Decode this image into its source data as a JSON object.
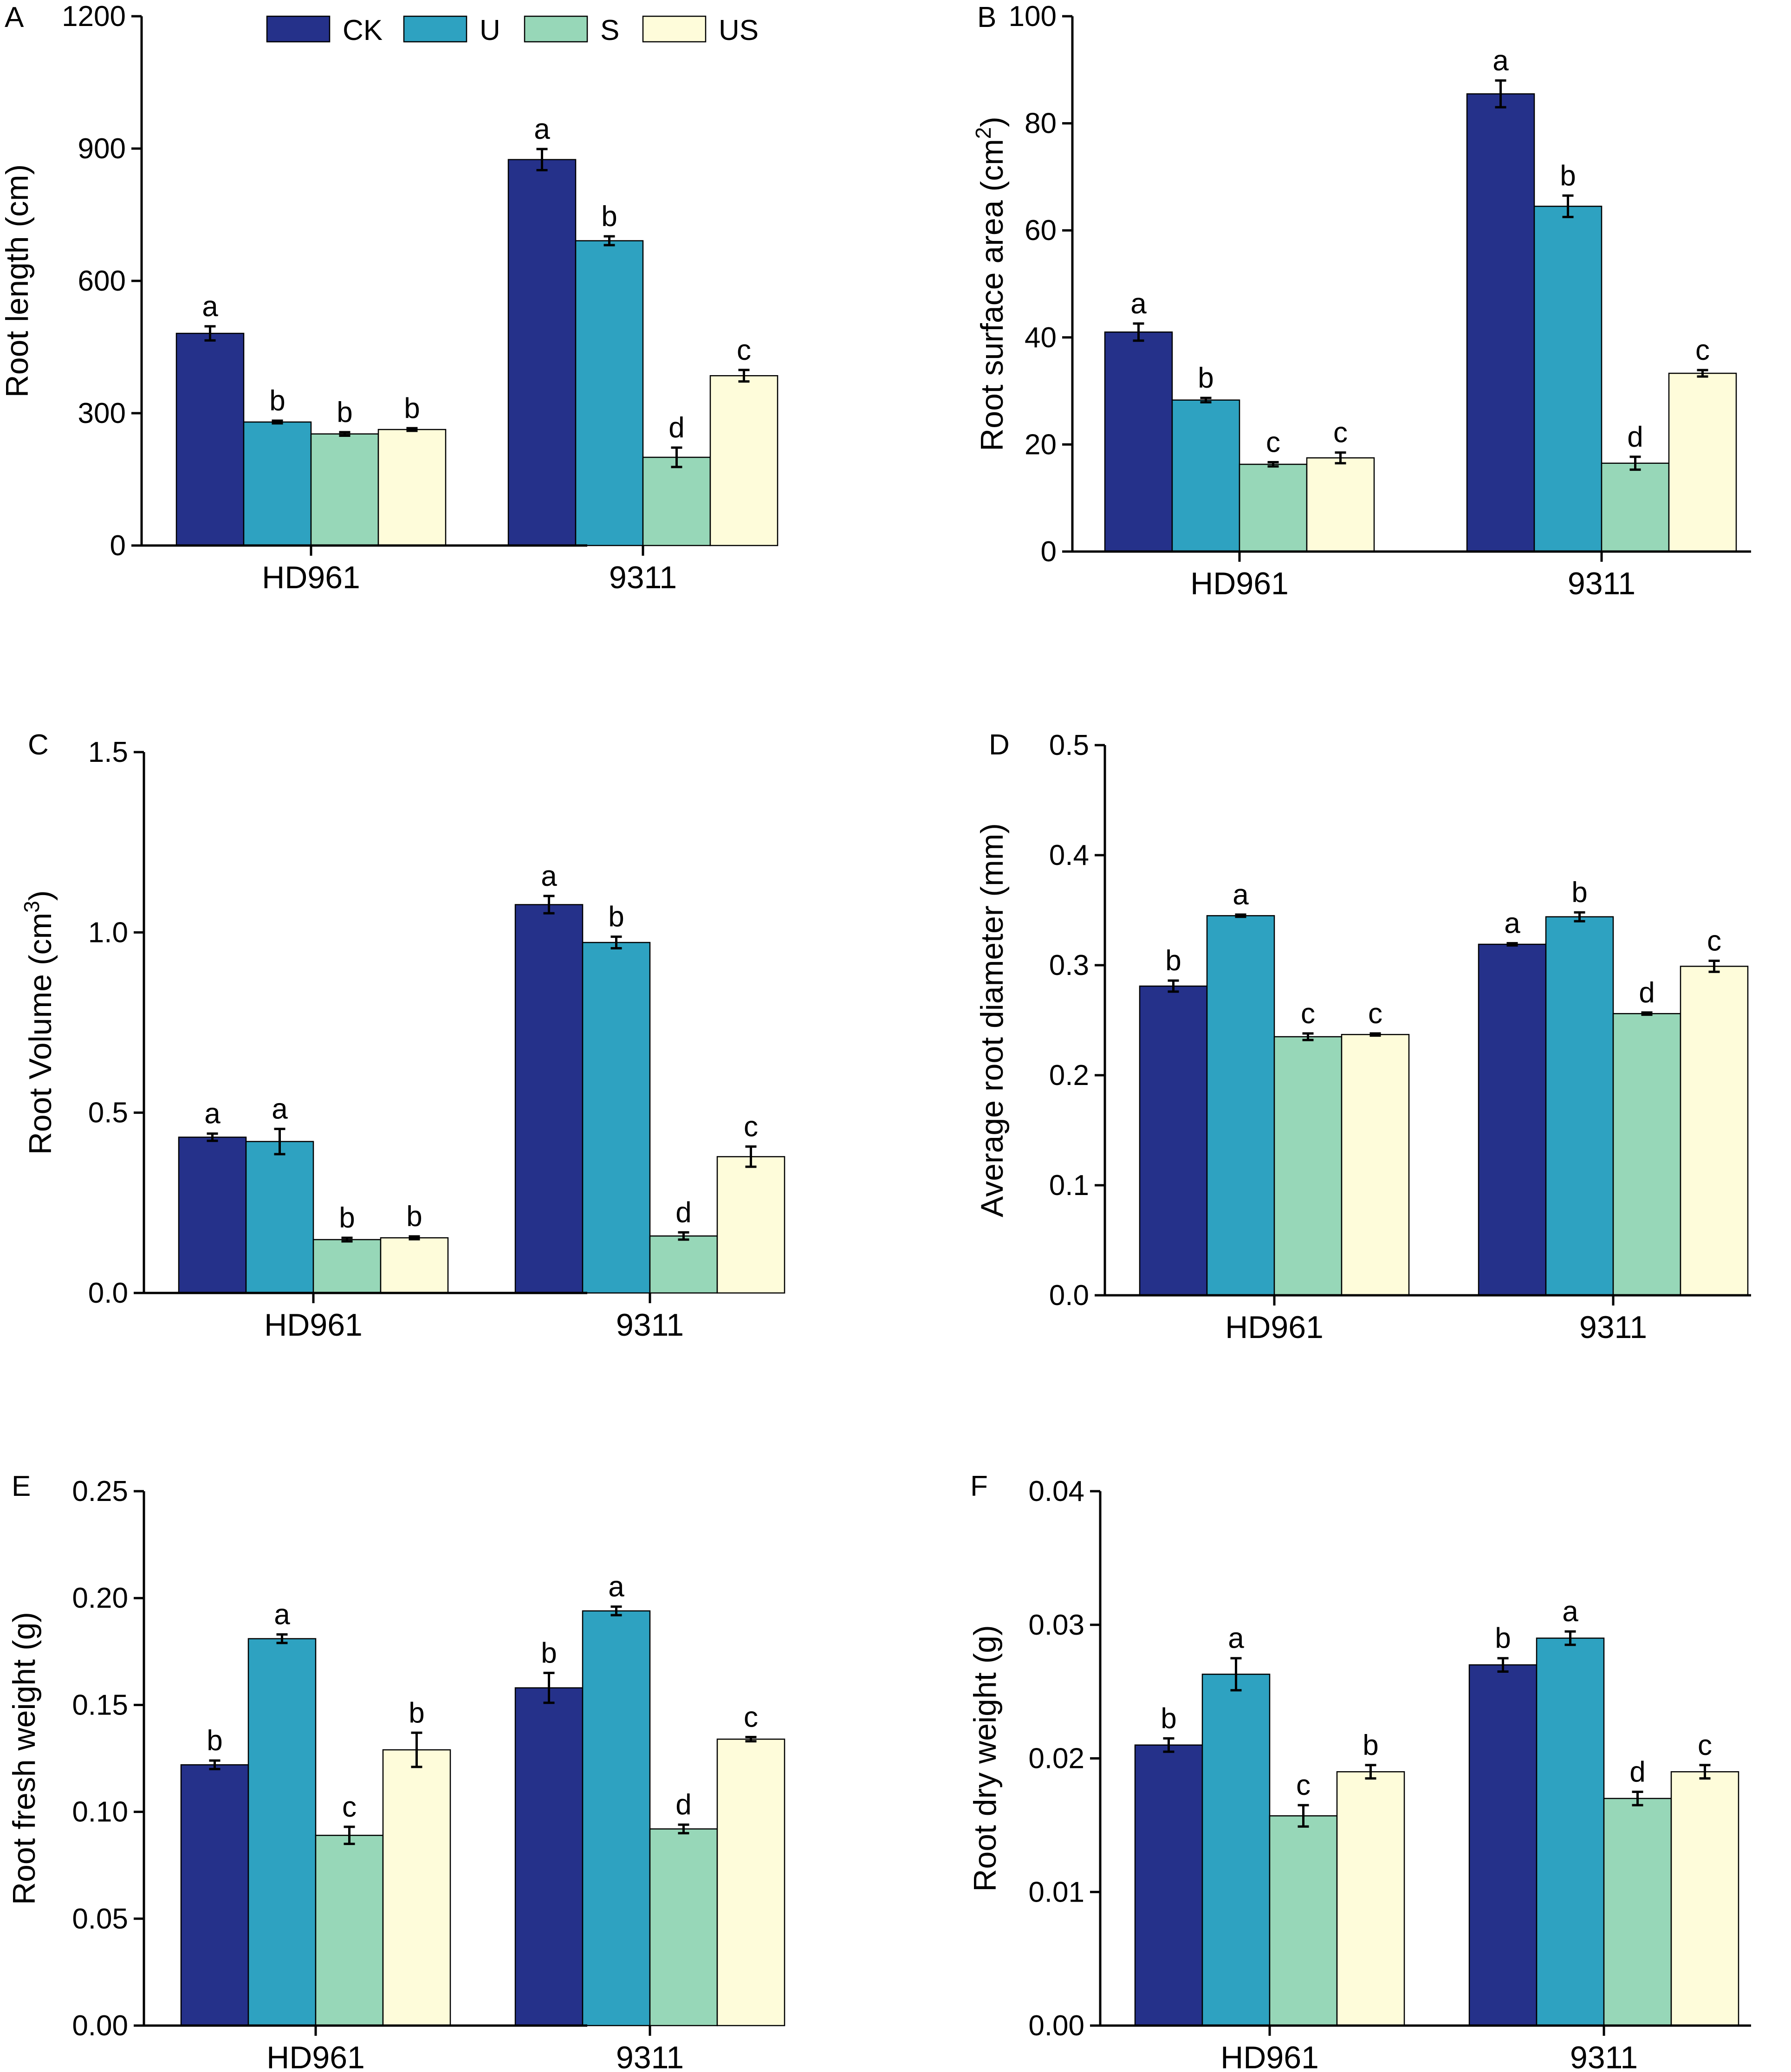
{
  "colors": {
    "CK": "#25318A",
    "U": "#2EA2C1",
    "S": "#97D7B8",
    "US": "#FEFCDA",
    "axis": "#000000"
  },
  "legend": [
    "CK",
    "U",
    "S",
    "US"
  ],
  "chart_data": [
    {
      "panel": "A",
      "type": "bar",
      "ylabel": "Root length (cm)",
      "ylabel_parts": [
        "Root length (cm)"
      ],
      "categories": [
        "HD961",
        "9311"
      ],
      "ylim": [
        0,
        1200
      ],
      "ticks": [
        "0",
        "300",
        "600",
        "900",
        "1200"
      ],
      "series": [
        {
          "name": "CK",
          "values": [
            481,
            875
          ],
          "errors": [
            16,
            24
          ],
          "letters": [
            "a",
            "a"
          ]
        },
        {
          "name": "U",
          "values": [
            280,
            691
          ],
          "errors": [
            3,
            10
          ],
          "letters": [
            "b",
            "b"
          ]
        },
        {
          "name": "S",
          "values": [
            253,
            200
          ],
          "errors": [
            4,
            22
          ],
          "letters": [
            "b",
            "d"
          ]
        },
        {
          "name": "US",
          "values": [
            263,
            385
          ],
          "errors": [
            3,
            13
          ],
          "letters": [
            "b",
            "c"
          ]
        }
      ]
    },
    {
      "panel": "B",
      "type": "bar",
      "ylabel": "Root surface area (cm2)",
      "ylabel_parts": [
        "Root surface area (cm",
        "2",
        ")"
      ],
      "categories": [
        "HD961",
        "9311"
      ],
      "ylim": [
        0,
        100
      ],
      "ticks": [
        "0",
        "20",
        "40",
        "60",
        "80",
        "100"
      ],
      "series": [
        {
          "name": "CK",
          "values": [
            41,
            85.5
          ],
          "errors": [
            1.6,
            2.5
          ],
          "letters": [
            "a",
            "a"
          ]
        },
        {
          "name": "U",
          "values": [
            28.3,
            64.5
          ],
          "errors": [
            0.4,
            2.0
          ],
          "letters": [
            "b",
            "b"
          ]
        },
        {
          "name": "S",
          "values": [
            16.3,
            16.5
          ],
          "errors": [
            0.4,
            1.2
          ],
          "letters": [
            "c",
            "d"
          ]
        },
        {
          "name": "US",
          "values": [
            17.5,
            33.3
          ],
          "errors": [
            1.0,
            0.6
          ],
          "letters": [
            "c",
            "c"
          ]
        }
      ]
    },
    {
      "panel": "C",
      "type": "bar",
      "ylabel": "Root Volume (cm3)",
      "ylabel_parts": [
        "Root Volume (cm",
        "3",
        ")"
      ],
      "categories": [
        "HD961",
        "9311"
      ],
      "ylim": [
        0,
        1.5
      ],
      "ticks": [
        "0.0",
        "0.5",
        "1.0",
        "1.5"
      ],
      "series": [
        {
          "name": "CK",
          "values": [
            0.432,
            1.077
          ],
          "errors": [
            0.01,
            0.024
          ],
          "letters": [
            "a",
            "a"
          ]
        },
        {
          "name": "U",
          "values": [
            0.42,
            0.972
          ],
          "errors": [
            0.035,
            0.016
          ],
          "letters": [
            "a",
            "b"
          ]
        },
        {
          "name": "S",
          "values": [
            0.148,
            0.158
          ],
          "errors": [
            0.005,
            0.01
          ],
          "letters": [
            "b",
            "d"
          ]
        },
        {
          "name": "US",
          "values": [
            0.153,
            0.378
          ],
          "errors": [
            0.004,
            0.028
          ],
          "letters": [
            "b",
            "c"
          ]
        }
      ]
    },
    {
      "panel": "D",
      "type": "bar",
      "ylabel": "Average root diameter (mm)",
      "ylabel_parts": [
        "Average root diameter (mm)"
      ],
      "categories": [
        "HD961",
        "9311"
      ],
      "ylim": [
        0,
        0.5
      ],
      "ticks": [
        "0.0",
        "0.1",
        "0.2",
        "0.3",
        "0.4",
        "0.5"
      ],
      "series": [
        {
          "name": "CK",
          "values": [
            0.281,
            0.319
          ],
          "errors": [
            0.005,
            0.001
          ],
          "letters": [
            "b",
            "a"
          ]
        },
        {
          "name": "U",
          "values": [
            0.345,
            0.344
          ],
          "errors": [
            0.001,
            0.004
          ],
          "letters": [
            "a",
            "b"
          ]
        },
        {
          "name": "S",
          "values": [
            0.235,
            0.256
          ],
          "errors": [
            0.003,
            0.001
          ],
          "letters": [
            "c",
            "d"
          ]
        },
        {
          "name": "US",
          "values": [
            0.237,
            0.299
          ],
          "errors": [
            0.001,
            0.005
          ],
          "letters": [
            "c",
            "c"
          ]
        }
      ]
    },
    {
      "panel": "E",
      "type": "bar",
      "ylabel": "Root fresh weight (g)",
      "ylabel_parts": [
        "Root fresh weight (g)"
      ],
      "categories": [
        "HD961",
        "9311"
      ],
      "ylim": [
        0,
        0.25
      ],
      "ticks": [
        "0.00",
        "0.05",
        "0.10",
        "0.15",
        "0.20",
        "0.25"
      ],
      "series": [
        {
          "name": "CK",
          "values": [
            0.122,
            0.158
          ],
          "errors": [
            0.002,
            0.007
          ],
          "letters": [
            "b",
            "b"
          ]
        },
        {
          "name": "U",
          "values": [
            0.181,
            0.194
          ],
          "errors": [
            0.002,
            0.002
          ],
          "letters": [
            "a",
            "a"
          ]
        },
        {
          "name": "S",
          "values": [
            0.089,
            0.092
          ],
          "errors": [
            0.004,
            0.002
          ],
          "letters": [
            "c",
            "d"
          ]
        },
        {
          "name": "US",
          "values": [
            0.129,
            0.134
          ],
          "errors": [
            0.008,
            0.001
          ],
          "letters": [
            "b",
            "c"
          ]
        }
      ]
    },
    {
      "panel": "F",
      "type": "bar",
      "ylabel": "Root dry weight (g)",
      "ylabel_parts": [
        "Root dry weight (g)"
      ],
      "categories": [
        "HD961",
        "9311"
      ],
      "ylim": [
        0,
        0.04
      ],
      "ticks": [
        "0.00",
        "0.01",
        "0.02",
        "0.03",
        "0.04"
      ],
      "series": [
        {
          "name": "CK",
          "values": [
            0.021,
            0.027
          ],
          "errors": [
            0.0005,
            0.0005
          ],
          "letters": [
            "b",
            "b"
          ]
        },
        {
          "name": "U",
          "values": [
            0.0263,
            0.029
          ],
          "errors": [
            0.0012,
            0.0005
          ],
          "letters": [
            "a",
            "a"
          ]
        },
        {
          "name": "S",
          "values": [
            0.0157,
            0.017
          ],
          "errors": [
            0.0008,
            0.0005
          ],
          "letters": [
            "c",
            "d"
          ]
        },
        {
          "name": "US",
          "values": [
            0.019,
            0.019
          ],
          "errors": [
            0.0005,
            0.0005
          ],
          "letters": [
            "b",
            "c"
          ]
        }
      ]
    }
  ]
}
